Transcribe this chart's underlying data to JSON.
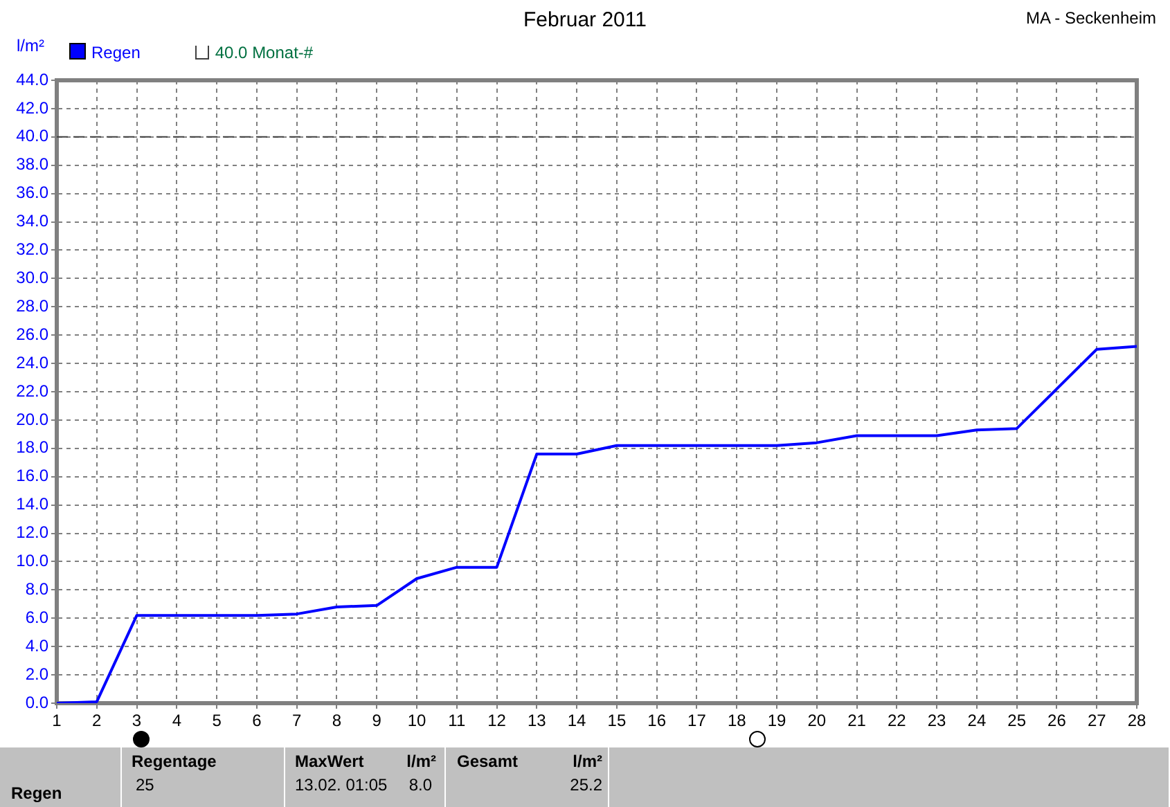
{
  "chart_data": {
    "type": "line",
    "title": "Februar 2011",
    "subtitle": "MA - Seckenheim",
    "ylabel": "l/m²",
    "x": [
      1,
      2,
      3,
      4,
      5,
      6,
      7,
      8,
      9,
      10,
      11,
      12,
      13,
      14,
      15,
      16,
      17,
      18,
      19,
      20,
      21,
      22,
      23,
      24,
      25,
      26,
      27,
      28
    ],
    "series": [
      {
        "name": "Regen",
        "color": "#0000ff",
        "values": [
          0,
          0.1,
          6.2,
          6.2,
          6.2,
          6.2,
          6.3,
          6.8,
          6.9,
          8.8,
          9.6,
          9.6,
          17.6,
          17.6,
          18.2,
          18.2,
          18.2,
          18.2,
          18.2,
          18.4,
          18.9,
          18.9,
          18.9,
          19.3,
          19.4,
          22.2,
          25.0,
          25.2
        ]
      }
    ],
    "xlim": [
      1,
      28
    ],
    "xticks": [
      1,
      2,
      3,
      4,
      5,
      6,
      7,
      8,
      9,
      10,
      11,
      12,
      13,
      14,
      15,
      16,
      17,
      18,
      19,
      20,
      21,
      22,
      23,
      24,
      25,
      26,
      27,
      28
    ],
    "ylim": [
      0,
      44
    ],
    "yticks": [
      {
        "value": 0,
        "label": "0.0"
      },
      {
        "value": 2,
        "label": "2.0"
      },
      {
        "value": 4,
        "label": "4.0"
      },
      {
        "value": 6,
        "label": "6.0"
      },
      {
        "value": 8,
        "label": "8.0"
      },
      {
        "value": 10,
        "label": "10.0"
      },
      {
        "value": 12,
        "label": "12.0"
      },
      {
        "value": 14,
        "label": "14.0"
      },
      {
        "value": 16,
        "label": "16.0"
      },
      {
        "value": 18,
        "label": "18.0"
      },
      {
        "value": 20,
        "label": "20.0"
      },
      {
        "value": 22,
        "label": "22.0"
      },
      {
        "value": 24,
        "label": "24.0"
      },
      {
        "value": 26,
        "label": "26.0"
      },
      {
        "value": 28,
        "label": "28.0"
      },
      {
        "value": 30,
        "label": "30.0"
      },
      {
        "value": 32,
        "label": "32.0"
      },
      {
        "value": 34,
        "label": "34.0"
      },
      {
        "value": 36,
        "label": "36.0"
      },
      {
        "value": 38,
        "label": "38.0"
      },
      {
        "value": 40,
        "label": "40.0"
      },
      {
        "value": 42,
        "label": "42.0"
      },
      {
        "value": 44,
        "label": "44.0"
      }
    ],
    "ref_lines": [
      {
        "axis": "y",
        "value": 40,
        "label": "40.0 Monat-#",
        "color": "#404040",
        "line_style": "dashed"
      }
    ],
    "grid": true,
    "legend": "top left",
    "marker": "none",
    "line_style": "solid",
    "annotations": [
      "Regen",
      "Regentage",
      "25",
      "MaxWert",
      "l/m²",
      "13.02.  01:05",
      "8.0",
      "Gesamt",
      "l/m²",
      "25.2"
    ]
  }
}
